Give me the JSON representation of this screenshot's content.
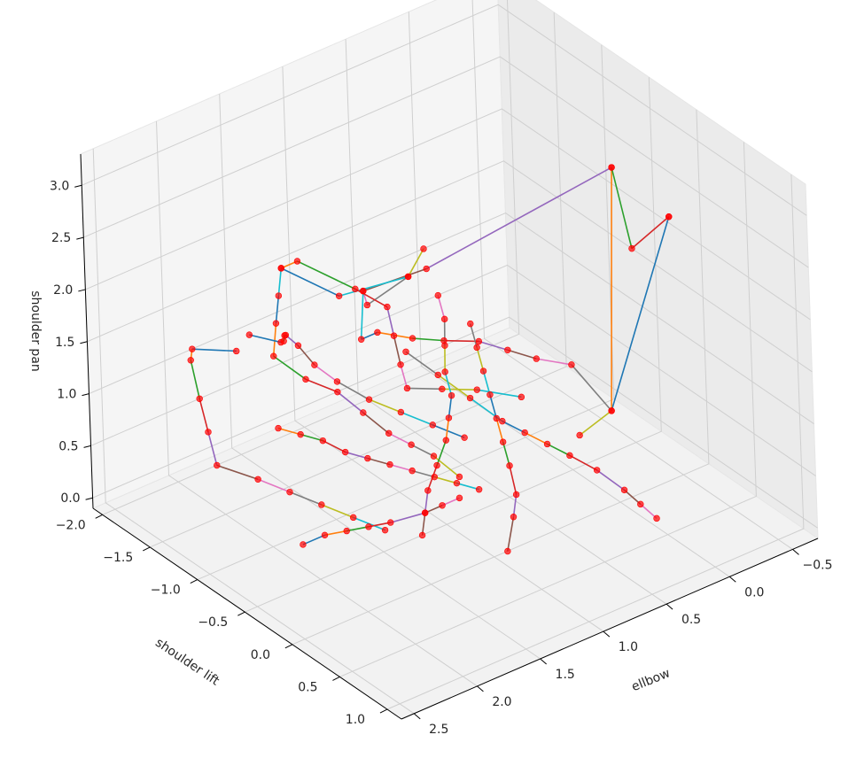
{
  "chart_data": {
    "type": "scatter",
    "title": "",
    "axes": {
      "x": {
        "label": "shoulder lift",
        "ticks": [
          "−2.0",
          "−1.5",
          "−1.0",
          "−0.5",
          "0.0",
          "0.5",
          "1.0"
        ]
      },
      "y": {
        "label": "ellbow",
        "ticks": [
          "−0.5",
          "0.0",
          "0.5",
          "1.0",
          "1.5",
          "2.0",
          "2.5"
        ]
      },
      "z": {
        "label": "shoulder pan",
        "ticks": [
          "0.0",
          "0.5",
          "1.0",
          "1.5",
          "2.0",
          "2.5",
          "3.0"
        ]
      }
    },
    "ranges": {
      "x": [
        -2.1,
        1.15
      ],
      "y": [
        -0.7,
        2.6
      ],
      "z": [
        -0.1,
        3.3
      ]
    },
    "grid": true,
    "marker_color": "#ff0000",
    "series_colors": [
      "#1f77b4",
      "#ff7f0e",
      "#2ca02c",
      "#d62728",
      "#9467bd",
      "#8c564b",
      "#e377c2",
      "#7f7f7f",
      "#bcbd22",
      "#17becf"
    ],
    "series": [
      {
        "values": [
          [
            -0.2,
            -0.6,
            2.2
          ],
          [
            -0.2,
            -0.1,
            0.6
          ],
          [
            -0.8,
            -0.6,
            2.3
          ],
          [
            -0.75,
            -0.7,
            1.5
          ],
          [
            -0.2,
            -0.6,
            2.2
          ]
        ]
      },
      {
        "values": [
          [
            -0.8,
            -0.6,
            2.3
          ],
          [
            -0.9,
            0.8,
            2.0
          ],
          [
            -0.9,
            1.3,
            2.05
          ],
          [
            -1.0,
            1.2,
            1.8
          ],
          [
            -1.1,
            0.8,
            1.8
          ],
          [
            -1.2,
            0.6,
            1.9
          ]
        ]
      },
      {
        "values": [
          [
            -0.9,
            1.3,
            2.05
          ],
          [
            -0.8,
            1.4,
            1.7
          ],
          [
            -0.9,
            1.2,
            1.6
          ],
          [
            -0.8,
            1.0,
            1.5
          ],
          [
            -0.6,
            0.9,
            1.55
          ],
          [
            -0.5,
            0.7,
            1.5
          ],
          [
            -0.4,
            0.55,
            1.4
          ],
          [
            -0.3,
            0.4,
            1.3
          ],
          [
            -0.2,
            0.2,
            1.2
          ],
          [
            -0.2,
            -0.1,
            0.6
          ],
          [
            0.0,
            0.3,
            0.7
          ]
        ]
      },
      {
        "values": [
          [
            -1.5,
            1.5,
            2.0
          ],
          [
            -1.4,
            1.6,
            1.85
          ],
          [
            -1.3,
            1.7,
            1.7
          ],
          [
            -1.2,
            1.8,
            1.5
          ],
          [
            -1.0,
            1.7,
            1.35
          ],
          [
            -0.8,
            1.6,
            1.3
          ],
          [
            -0.6,
            1.55,
            1.2
          ],
          [
            -0.4,
            1.5,
            1.1
          ],
          [
            -0.3,
            1.4,
            1.0
          ],
          [
            -0.2,
            1.3,
            0.9
          ],
          [
            0.0,
            1.25,
            0.8
          ]
        ]
      },
      {
        "values": [
          [
            -1.1,
            0.8,
            1.8
          ],
          [
            -1.3,
            1.2,
            1.7
          ],
          [
            -1.5,
            1.5,
            2.0
          ],
          [
            -1.6,
            1.3,
            1.9
          ],
          [
            -1.4,
            1.0,
            1.6
          ],
          [
            -1.2,
            0.9,
            1.5
          ],
          [
            -1.0,
            1.0,
            1.4
          ],
          [
            -0.8,
            1.1,
            1.3
          ],
          [
            -0.6,
            1.2,
            1.25
          ],
          [
            -0.5,
            1.0,
            1.2
          ],
          [
            -0.4,
            0.8,
            1.15
          ],
          [
            -0.2,
            0.6,
            1.1
          ]
        ]
      },
      {
        "values": [
          [
            -1.6,
            1.8,
            1.3
          ],
          [
            -1.8,
            2.0,
            1.3
          ],
          [
            -1.75,
            2.05,
            1.25
          ],
          [
            -1.6,
            2.1,
            1.0
          ],
          [
            -1.45,
            2.15,
            0.8
          ],
          [
            -1.3,
            2.2,
            0.6
          ],
          [
            -1.0,
            2.1,
            0.6
          ],
          [
            -0.8,
            2.0,
            0.55
          ],
          [
            -0.6,
            1.9,
            0.5
          ],
          [
            -0.4,
            1.8,
            0.45
          ],
          [
            -0.2,
            1.7,
            0.4
          ]
        ]
      },
      {
        "values": [
          [
            -1.8,
            1.55,
            1.2
          ],
          [
            -1.6,
            1.45,
            1.2
          ],
          [
            -1.5,
            1.5,
            1.3
          ],
          [
            -1.35,
            1.6,
            1.5
          ],
          [
            -1.2,
            1.7,
            1.65
          ],
          [
            -1.0,
            1.75,
            1.7
          ],
          [
            -0.9,
            1.7,
            1.55
          ],
          [
            -0.8,
            1.6,
            1.4
          ],
          [
            -0.6,
            1.5,
            1.3
          ],
          [
            -0.4,
            1.4,
            1.25
          ],
          [
            -0.2,
            1.3,
            1.2
          ],
          [
            0.0,
            1.2,
            1.15
          ]
        ]
      },
      {
        "values": [
          [
            -0.9,
            2.0,
            1.1
          ],
          [
            -0.8,
            1.9,
            1.05
          ],
          [
            -0.7,
            1.8,
            1.0
          ],
          [
            -0.6,
            1.7,
            0.9
          ],
          [
            -0.5,
            1.6,
            0.85
          ],
          [
            -0.4,
            1.5,
            0.8
          ],
          [
            -0.3,
            1.4,
            0.75
          ],
          [
            -0.2,
            1.3,
            0.7
          ],
          [
            -0.1,
            1.2,
            0.65
          ],
          [
            0.0,
            1.1,
            0.6
          ]
        ]
      },
      {
        "values": [
          [
            -0.4,
            2.2,
            0.4
          ],
          [
            -0.3,
            2.1,
            0.5
          ],
          [
            -0.2,
            2.0,
            0.55
          ],
          [
            -0.1,
            1.9,
            0.6
          ],
          [
            0.0,
            1.8,
            0.65
          ],
          [
            0.1,
            1.6,
            0.7
          ],
          [
            0.15,
            1.5,
            0.75
          ],
          [
            0.2,
            1.4,
            0.8
          ]
        ]
      },
      {
        "values": [
          [
            -0.6,
            1.2,
            1.6
          ],
          [
            -0.4,
            1.1,
            1.45
          ],
          [
            -0.2,
            1.0,
            1.3
          ],
          [
            0.0,
            0.9,
            1.15
          ],
          [
            0.1,
            0.8,
            1.05
          ],
          [
            0.2,
            0.7,
            0.95
          ],
          [
            0.3,
            0.6,
            0.85
          ],
          [
            0.45,
            0.5,
            0.75
          ],
          [
            0.6,
            0.4,
            0.6
          ],
          [
            0.7,
            0.35,
            0.5
          ],
          [
            0.8,
            0.3,
            0.4
          ]
        ]
      },
      {
        "values": [
          [
            -1.0,
            0.4,
            1.2
          ],
          [
            -0.8,
            0.5,
            1.15
          ],
          [
            -0.6,
            0.6,
            1.1
          ],
          [
            -0.4,
            0.7,
            1.05
          ],
          [
            -0.2,
            0.8,
            1.0
          ],
          [
            0.0,
            0.9,
            0.95
          ],
          [
            0.2,
            1.0,
            0.9
          ],
          [
            0.4,
            1.1,
            0.8
          ],
          [
            0.5,
            1.2,
            0.7
          ],
          [
            0.7,
            1.4,
            0.6
          ]
        ]
      },
      {
        "values": [
          [
            -1.2,
            0.5,
            1.4
          ],
          [
            -1.0,
            0.6,
            1.35
          ],
          [
            -0.8,
            0.75,
            1.3
          ],
          [
            -0.6,
            0.9,
            1.25
          ],
          [
            -0.4,
            1.0,
            1.2
          ],
          [
            -0.3,
            1.1,
            1.1
          ],
          [
            -0.2,
            1.2,
            1.0
          ],
          [
            -0.1,
            1.35,
            0.9
          ],
          [
            0.0,
            1.5,
            0.8
          ],
          [
            0.1,
            1.6,
            0.7
          ],
          [
            0.2,
            1.7,
            0.6
          ]
        ]
      }
    ]
  }
}
